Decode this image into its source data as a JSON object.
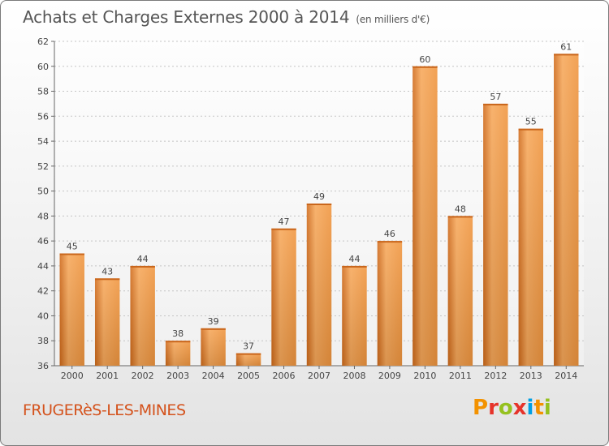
{
  "chart_data": {
    "type": "bar",
    "title": "Achats et Charges Externes 2000 à 2014",
    "subtitle": "(en milliers d'€)",
    "categories": [
      "2000",
      "2001",
      "2002",
      "2003",
      "2004",
      "2005",
      "2006",
      "2007",
      "2008",
      "2009",
      "2010",
      "2011",
      "2012",
      "2013",
      "2014"
    ],
    "values": [
      45,
      43,
      44,
      38,
      39,
      37,
      47,
      49,
      44,
      46,
      60,
      48,
      57,
      55,
      61
    ],
    "ylim": [
      36,
      62
    ],
    "yticks": [
      36,
      38,
      40,
      42,
      44,
      46,
      48,
      50,
      52,
      54,
      56,
      58,
      60,
      62
    ],
    "grid": true,
    "bar_color": "#f0953e",
    "bar_color_light": "#f7a85a",
    "bar_color_dark": "#d06a1a"
  },
  "footer": {
    "place": "FRUGERèS-LES-MINES",
    "logo_letters": [
      "P",
      "r",
      "o",
      "x",
      "i",
      "t",
      "i"
    ],
    "logo_colors": [
      "#f39200",
      "#e6332a",
      "#95c11f",
      "#e6332a",
      "#009fe3",
      "#f39200",
      "#95c11f"
    ]
  }
}
